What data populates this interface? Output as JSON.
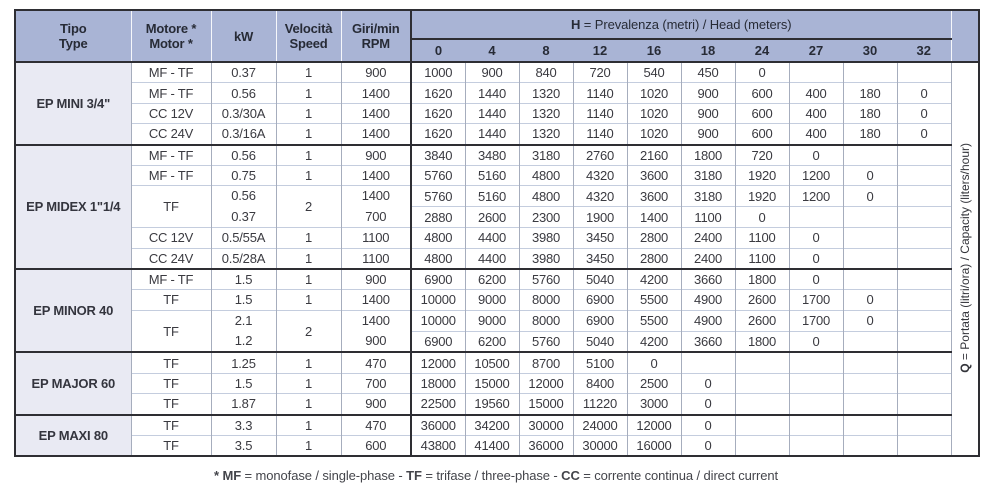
{
  "colors": {
    "header_bg": "#a9b4d5",
    "group_cell_bg": "#e9eaf3",
    "dark_border": "#2e2e33",
    "row_line": "#c4cdde",
    "column_line": "#a6adbd",
    "text": "#3a3a40"
  },
  "table": {
    "columns": [
      {
        "line1": "Tipo",
        "line2": "Type"
      },
      {
        "line1": "Motore *",
        "line2": "Motor *"
      },
      {
        "line1": "kW",
        "line2": ""
      },
      {
        "line1": "Velocità",
        "line2": "Speed"
      },
      {
        "line1": "Giri/min",
        "line2": "RPM"
      }
    ],
    "h_header": {
      "bold": "H",
      "rest": " = Prevalenza (metri) / Head (meters)"
    },
    "h_columns": [
      "0",
      "4",
      "8",
      "12",
      "16",
      "18",
      "24",
      "27",
      "30",
      "32"
    ],
    "side_label": {
      "bold": "Q",
      "rest": " = Portata (litri/ora) / Capacity (liters/hour)"
    },
    "groups": [
      {
        "name": "EP MINI 3/4\"",
        "rows": [
          {
            "motor": "MF - TF",
            "kw": "0.37",
            "speed": "1",
            "rpm": "900",
            "q": [
              "1000",
              "900",
              "840",
              "720",
              "540",
              "450",
              "0",
              "",
              "",
              ""
            ]
          },
          {
            "motor": "MF - TF",
            "kw": "0.56",
            "speed": "1",
            "rpm": "1400",
            "q": [
              "1620",
              "1440",
              "1320",
              "1140",
              "1020",
              "900",
              "600",
              "400",
              "180",
              "0"
            ]
          },
          {
            "motor": "CC 12V",
            "kw": "0.3/30A",
            "speed": "1",
            "rpm": "1400",
            "q": [
              "1620",
              "1440",
              "1320",
              "1140",
              "1020",
              "900",
              "600",
              "400",
              "180",
              "0"
            ]
          },
          {
            "motor": "CC 24V",
            "kw": "0.3/16A",
            "speed": "1",
            "rpm": "1400",
            "q": [
              "1620",
              "1440",
              "1320",
              "1140",
              "1020",
              "900",
              "600",
              "400",
              "180",
              "0"
            ]
          }
        ]
      },
      {
        "name": "EP MIDEX 1\"1/4",
        "rows": [
          {
            "motor": "MF - TF",
            "kw": "0.56",
            "speed": "1",
            "rpm": "900",
            "q": [
              "3840",
              "3480",
              "3180",
              "2760",
              "2160",
              "1800",
              "720",
              "0",
              "",
              ""
            ]
          },
          {
            "motor": "MF - TF",
            "kw": "0.75",
            "speed": "1",
            "rpm": "1400",
            "q": [
              "5760",
              "5160",
              "4800",
              "4320",
              "3600",
              "3180",
              "1920",
              "1200",
              "0",
              ""
            ]
          },
          {
            "merged": true,
            "motor": "TF",
            "kw": [
              "0.56",
              "0.37"
            ],
            "speed": "2",
            "rpm": [
              "1400",
              "700"
            ],
            "q": [
              [
                "5760",
                "5160",
                "4800",
                "4320",
                "3600",
                "3180",
                "1920",
                "1200",
                "0",
                ""
              ],
              [
                "2880",
                "2600",
                "2300",
                "1900",
                "1400",
                "1100",
                "0",
                "",
                "",
                ""
              ]
            ]
          },
          {
            "motor": "CC 12V",
            "kw": "0.5/55A",
            "speed": "1",
            "rpm": "1100",
            "q": [
              "4800",
              "4400",
              "3980",
              "3450",
              "2800",
              "2400",
              "1100",
              "0",
              "",
              ""
            ]
          },
          {
            "motor": "CC 24V",
            "kw": "0.5/28A",
            "speed": "1",
            "rpm": "1100",
            "q": [
              "4800",
              "4400",
              "3980",
              "3450",
              "2800",
              "2400",
              "1100",
              "0",
              "",
              ""
            ]
          }
        ]
      },
      {
        "name": "EP MINOR 40",
        "rows": [
          {
            "motor": "MF - TF",
            "kw": "1.5",
            "speed": "1",
            "rpm": "900",
            "q": [
              "6900",
              "6200",
              "5760",
              "5040",
              "4200",
              "3660",
              "1800",
              "0",
              "",
              ""
            ]
          },
          {
            "motor": "TF",
            "kw": "1.5",
            "speed": "1",
            "rpm": "1400",
            "q": [
              "10000",
              "9000",
              "8000",
              "6900",
              "5500",
              "4900",
              "2600",
              "1700",
              "0",
              ""
            ]
          },
          {
            "merged": true,
            "motor": "TF",
            "kw": [
              "2.1",
              "1.2"
            ],
            "speed": "2",
            "rpm": [
              "1400",
              "900"
            ],
            "q": [
              [
                "10000",
                "9000",
                "8000",
                "6900",
                "5500",
                "4900",
                "2600",
                "1700",
                "0",
                ""
              ],
              [
                "6900",
                "6200",
                "5760",
                "5040",
                "4200",
                "3660",
                "1800",
                "0",
                "",
                ""
              ]
            ]
          }
        ]
      },
      {
        "name": "EP MAJOR 60",
        "rows": [
          {
            "motor": "TF",
            "kw": "1.25",
            "speed": "1",
            "rpm": "470",
            "q": [
              "12000",
              "10500",
              "8700",
              "5100",
              "0",
              "",
              "",
              "",
              "",
              ""
            ]
          },
          {
            "motor": "TF",
            "kw": "1.5",
            "speed": "1",
            "rpm": "700",
            "q": [
              "18000",
              "15000",
              "12000",
              "8400",
              "2500",
              "0",
              "",
              "",
              "",
              ""
            ]
          },
          {
            "motor": "TF",
            "kw": "1.87",
            "speed": "1",
            "rpm": "900",
            "q": [
              "22500",
              "19560",
              "15000",
              "11220",
              "3000",
              "0",
              "",
              "",
              "",
              ""
            ]
          }
        ]
      },
      {
        "name": "EP MAXI 80",
        "rows": [
          {
            "motor": "TF",
            "kw": "3.3",
            "speed": "1",
            "rpm": "470",
            "q": [
              "36000",
              "34200",
              "30000",
              "24000",
              "12000",
              "0",
              "",
              "",
              "",
              ""
            ]
          },
          {
            "motor": "TF",
            "kw": "3.5",
            "speed": "1",
            "rpm": "600",
            "q": [
              "43800",
              "41400",
              "36000",
              "30000",
              "16000",
              "0",
              "",
              "",
              "",
              ""
            ]
          }
        ]
      }
    ]
  },
  "footnote": {
    "segments": [
      {
        "text": "* MF",
        "bold": true
      },
      {
        "text": " = monofase / single-phase - ",
        "bold": false
      },
      {
        "text": "TF",
        "bold": true
      },
      {
        "text": " = trifase / three-phase - ",
        "bold": false
      },
      {
        "text": "CC",
        "bold": true
      },
      {
        "text": " = corrente continua / direct current",
        "bold": false
      }
    ]
  }
}
